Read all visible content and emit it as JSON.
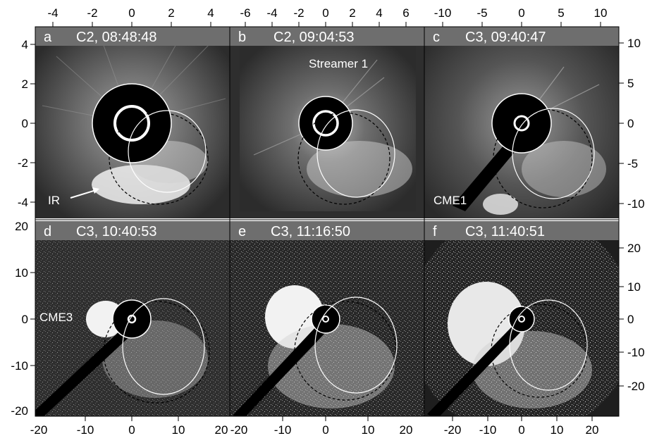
{
  "panels": [
    {
      "letter": "a",
      "title": "C2, 08:48:48",
      "annotations": [
        "IR"
      ]
    },
    {
      "letter": "b",
      "title": "C2, 09:04:53",
      "annotations": [
        "Streamer 1"
      ]
    },
    {
      "letter": "c",
      "title": "C3, 09:40:47",
      "annotations": [
        "CME1"
      ]
    },
    {
      "letter": "d",
      "title": "C3, 10:40:53",
      "annotations": [
        "CME3"
      ]
    },
    {
      "letter": "e",
      "title": "C3, 11:16:50",
      "annotations": []
    },
    {
      "letter": "f",
      "title": "C3, 11:40:51",
      "annotations": []
    }
  ],
  "axes": {
    "top_a": [
      "-4",
      "-2",
      "0",
      "2",
      "4"
    ],
    "top_b": [
      "-6",
      "-4",
      "-2",
      "0",
      "2",
      "4",
      "6"
    ],
    "top_c": [
      "-10",
      "-5",
      "0",
      "5",
      "10"
    ],
    "left_a": [
      "4",
      "2",
      "0",
      "-2",
      "-4"
    ],
    "left_d": [
      "20",
      "10",
      "0",
      "-10",
      "-20"
    ],
    "right_c": [
      "10",
      "5",
      "0",
      "-5",
      "-10"
    ],
    "right_f": [
      "20",
      "10",
      "0",
      "-10",
      "-20"
    ],
    "bottom_d": [
      "-20",
      "-10",
      "0",
      "10",
      "20"
    ],
    "bottom_e": [
      "-20",
      "-10",
      "0",
      "10",
      "20"
    ],
    "bottom_f": [
      "-20",
      "-10",
      "0",
      "10",
      "20"
    ]
  },
  "colors": {
    "panel_bg": "#3a3a3a",
    "header_bg": "#6e6e6e",
    "occulter": "#000000",
    "cme_bright": "#f2f2f2"
  }
}
